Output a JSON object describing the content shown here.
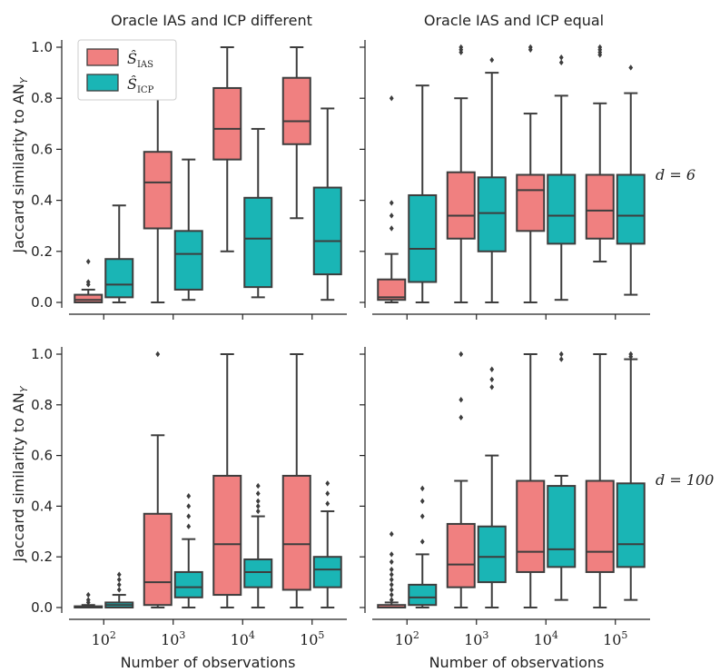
{
  "figure": {
    "xlabel": "Number of observations",
    "ylabel": "Jaccard similarity to AN",
    "ylabel_sub": "Y",
    "col_titles": [
      "Oracle IAS and ICP different",
      "Oracle IAS and ICP equal"
    ],
    "row_labels": [
      "d = 6",
      "d = 100"
    ],
    "x_tick_base": "10",
    "x_tick_exponents": [
      "2",
      "3",
      "4",
      "5"
    ],
    "y_ticks": [
      "0.0",
      "0.2",
      "0.4",
      "0.6",
      "0.8",
      "1.0"
    ],
    "legend": [
      {
        "main": "Ŝ",
        "sub": "IAS",
        "color": "#f08080"
      },
      {
        "main": "Ŝ",
        "sub": "ICP",
        "color": "#1ab5b5"
      }
    ]
  },
  "chart_data": [
    {
      "type": "box",
      "title": "Oracle IAS and ICP different",
      "row": "d = 6",
      "ylim": [
        0,
        1
      ],
      "categories": [
        "10^2",
        "10^3",
        "10^4",
        "10^5"
      ],
      "series": [
        {
          "name": "IAS",
          "boxes": [
            {
              "whislo": 0,
              "q1": 0,
              "med": 0.01,
              "q3": 0.03,
              "whishi": 0.05,
              "fliers": [
                0.07,
                0.08,
                0.16
              ]
            },
            {
              "whislo": 0,
              "q1": 0.29,
              "med": 0.47,
              "q3": 0.59,
              "whishi": 0.82,
              "fliers": []
            },
            {
              "whislo": 0.2,
              "q1": 0.56,
              "med": 0.68,
              "q3": 0.84,
              "whishi": 1.0,
              "fliers": []
            },
            {
              "whislo": 0.33,
              "q1": 0.62,
              "med": 0.71,
              "q3": 0.88,
              "whishi": 1.0,
              "fliers": []
            }
          ]
        },
        {
          "name": "ICP",
          "boxes": [
            {
              "whislo": 0,
              "q1": 0.02,
              "med": 0.07,
              "q3": 0.17,
              "whishi": 0.38,
              "fliers": []
            },
            {
              "whislo": 0.01,
              "q1": 0.05,
              "med": 0.19,
              "q3": 0.28,
              "whishi": 0.56,
              "fliers": []
            },
            {
              "whislo": 0.02,
              "q1": 0.06,
              "med": 0.25,
              "q3": 0.41,
              "whishi": 0.68,
              "fliers": []
            },
            {
              "whislo": 0.01,
              "q1": 0.11,
              "med": 0.24,
              "q3": 0.45,
              "whishi": 0.76,
              "fliers": []
            }
          ]
        }
      ]
    },
    {
      "type": "box",
      "title": "Oracle IAS and ICP equal",
      "row": "d = 6",
      "ylim": [
        0,
        1
      ],
      "categories": [
        "10^2",
        "10^3",
        "10^4",
        "10^5"
      ],
      "series": [
        {
          "name": "IAS",
          "boxes": [
            {
              "whislo": 0,
              "q1": 0.01,
              "med": 0.02,
              "q3": 0.09,
              "whishi": 0.19,
              "fliers": [
                0.29,
                0.34,
                0.39,
                0.8
              ]
            },
            {
              "whislo": 0,
              "q1": 0.25,
              "med": 0.34,
              "q3": 0.51,
              "whishi": 0.8,
              "fliers": [
                0.98,
                0.99,
                1.0
              ]
            },
            {
              "whislo": 0,
              "q1": 0.28,
              "med": 0.44,
              "q3": 0.5,
              "whishi": 0.74,
              "fliers": [
                0.99,
                1.0
              ]
            },
            {
              "whislo": 0.16,
              "q1": 0.25,
              "med": 0.36,
              "q3": 0.5,
              "whishi": 0.78,
              "fliers": [
                0.97,
                0.98,
                0.99,
                1.0
              ]
            }
          ]
        },
        {
          "name": "ICP",
          "boxes": [
            {
              "whislo": 0,
              "q1": 0.08,
              "med": 0.21,
              "q3": 0.42,
              "whishi": 0.85,
              "fliers": []
            },
            {
              "whislo": 0,
              "q1": 0.2,
              "med": 0.35,
              "q3": 0.49,
              "whishi": 0.9,
              "fliers": [
                0.95
              ]
            },
            {
              "whislo": 0.01,
              "q1": 0.23,
              "med": 0.34,
              "q3": 0.5,
              "whishi": 0.81,
              "fliers": [
                0.94,
                0.96
              ]
            },
            {
              "whislo": 0.03,
              "q1": 0.23,
              "med": 0.34,
              "q3": 0.5,
              "whishi": 0.82,
              "fliers": [
                0.92
              ]
            }
          ]
        }
      ]
    },
    {
      "type": "box",
      "title": "Oracle IAS and ICP different",
      "row": "d = 100",
      "ylim": [
        0,
        1
      ],
      "categories": [
        "10^2",
        "10^3",
        "10^4",
        "10^5"
      ],
      "series": [
        {
          "name": "IAS",
          "boxes": [
            {
              "whislo": 0,
              "q1": 0,
              "med": 0,
              "q3": 0.005,
              "whishi": 0.01,
              "fliers": [
                0.02,
                0.03,
                0.05
              ]
            },
            {
              "whislo": 0,
              "q1": 0.01,
              "med": 0.1,
              "q3": 0.37,
              "whishi": 0.68,
              "fliers": [
                1.0
              ]
            },
            {
              "whislo": 0,
              "q1": 0.05,
              "med": 0.25,
              "q3": 0.52,
              "whishi": 1.0,
              "fliers": []
            },
            {
              "whislo": 0,
              "q1": 0.07,
              "med": 0.25,
              "q3": 0.52,
              "whishi": 1.0,
              "fliers": []
            }
          ]
        },
        {
          "name": "ICP",
          "boxes": [
            {
              "whislo": 0,
              "q1": 0,
              "med": 0.01,
              "q3": 0.02,
              "whishi": 0.05,
              "fliers": [
                0.07,
                0.09,
                0.11,
                0.13
              ]
            },
            {
              "whislo": 0,
              "q1": 0.04,
              "med": 0.08,
              "q3": 0.14,
              "whishi": 0.27,
              "fliers": [
                0.32,
                0.36,
                0.4,
                0.44
              ]
            },
            {
              "whislo": 0,
              "q1": 0.08,
              "med": 0.14,
              "q3": 0.19,
              "whishi": 0.36,
              "fliers": [
                0.38,
                0.4,
                0.42,
                0.45,
                0.48
              ]
            },
            {
              "whislo": 0,
              "q1": 0.08,
              "med": 0.15,
              "q3": 0.2,
              "whishi": 0.38,
              "fliers": [
                0.41,
                0.45,
                0.49
              ]
            }
          ]
        }
      ]
    },
    {
      "type": "box",
      "title": "Oracle IAS and ICP equal",
      "row": "d = 100",
      "ylim": [
        0,
        1
      ],
      "categories": [
        "10^2",
        "10^3",
        "10^4",
        "10^5"
      ],
      "series": [
        {
          "name": "IAS",
          "boxes": [
            {
              "whislo": 0,
              "q1": 0,
              "med": 0,
              "q3": 0.01,
              "whishi": 0.02,
              "fliers": [
                0.03,
                0.05,
                0.07,
                0.09,
                0.11,
                0.13,
                0.15,
                0.18,
                0.21,
                0.29
              ]
            },
            {
              "whislo": 0,
              "q1": 0.08,
              "med": 0.17,
              "q3": 0.33,
              "whishi": 0.5,
              "fliers": [
                0.75,
                0.82,
                1.0
              ]
            },
            {
              "whislo": 0,
              "q1": 0.14,
              "med": 0.22,
              "q3": 0.5,
              "whishi": 1.0,
              "fliers": []
            },
            {
              "whislo": 0,
              "q1": 0.14,
              "med": 0.22,
              "q3": 0.5,
              "whishi": 1.0,
              "fliers": []
            }
          ]
        },
        {
          "name": "ICP",
          "boxes": [
            {
              "whislo": 0,
              "q1": 0.01,
              "med": 0.04,
              "q3": 0.09,
              "whishi": 0.21,
              "fliers": [
                0.26,
                0.36,
                0.42,
                0.47
              ]
            },
            {
              "whislo": 0,
              "q1": 0.1,
              "med": 0.2,
              "q3": 0.32,
              "whishi": 0.6,
              "fliers": [
                0.87,
                0.9,
                0.94
              ]
            },
            {
              "whislo": 0.03,
              "q1": 0.16,
              "med": 0.23,
              "q3": 0.48,
              "whishi": 0.52,
              "fliers": [
                0.98,
                1.0
              ]
            },
            {
              "whislo": 0.03,
              "q1": 0.16,
              "med": 0.25,
              "q3": 0.49,
              "whishi": 0.98,
              "fliers": [
                0.99,
                1.0
              ]
            }
          ]
        }
      ]
    }
  ]
}
